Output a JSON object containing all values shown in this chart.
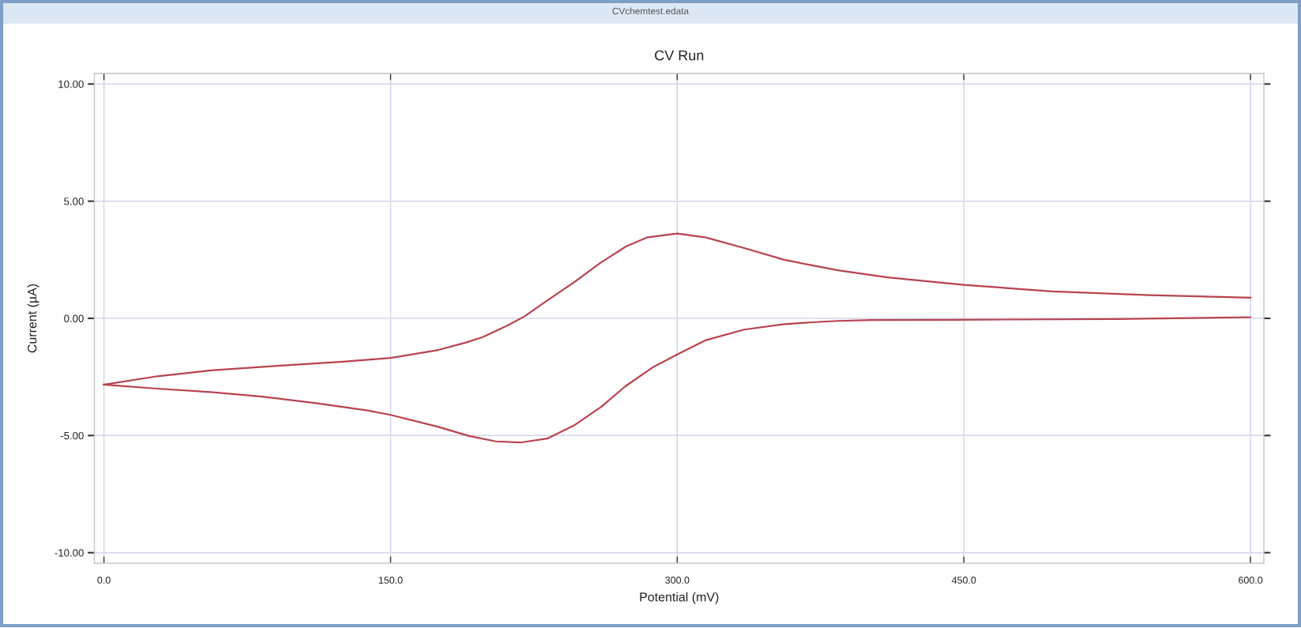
{
  "chart_data": {
    "type": "line",
    "title": "CV Run",
    "xlabel": "Potential (mV)",
    "ylabel": "Current (µA)",
    "annotations": [
      "CVchemtest.edata"
    ],
    "series": [
      {
        "color": "#b8434f",
        "x": [
          0,
          28,
          56,
          83,
          111,
          138,
          150,
          175,
          191,
          205,
          218,
          232,
          246,
          260,
          273,
          287,
          300,
          315,
          335,
          356,
          372,
          384,
          402,
          445,
          530,
          600
        ],
        "values": [
          -2.83,
          -3.0,
          -3.15,
          -3.34,
          -3.62,
          -3.93,
          -4.12,
          -4.63,
          -5.02,
          -5.25,
          -5.3,
          -5.13,
          -4.57,
          -3.79,
          -2.89,
          -2.1,
          -1.54,
          -0.93,
          -0.48,
          -0.25,
          -0.16,
          -0.11,
          -0.07,
          -0.06,
          -0.03,
          0.05
        ]
      },
      {
        "color": "#b8434f",
        "x": [
          600,
          547,
          496,
          450,
          410,
          384,
          370,
          356,
          335,
          315,
          300,
          284,
          273,
          260,
          246,
          232,
          220,
          211,
          198,
          189,
          175,
          150,
          125,
          97,
          56,
          28,
          0
        ],
        "values": [
          0.88,
          0.99,
          1.15,
          1.43,
          1.75,
          2.05,
          2.27,
          2.5,
          3.0,
          3.45,
          3.62,
          3.45,
          3.06,
          2.38,
          1.54,
          0.76,
          0.08,
          -0.31,
          -0.81,
          -1.04,
          -1.35,
          -1.69,
          -1.85,
          -1.99,
          -2.22,
          -2.47,
          -2.83
        ]
      }
    ],
    "xlim": [
      -5,
      607
    ],
    "ylim": [
      -10.45,
      10.45
    ],
    "xticks": [
      {
        "value": 0,
        "label": "0.0"
      },
      {
        "value": 150,
        "label": "150.0"
      },
      {
        "value": 300,
        "label": "300.0"
      },
      {
        "value": 450,
        "label": "450.0"
      },
      {
        "value": 600,
        "label": "600.0"
      }
    ],
    "yticks": [
      {
        "value": -10,
        "label": "-10.00"
      },
      {
        "value": -5,
        "label": "-5.00"
      },
      {
        "value": 0,
        "label": "0.00"
      },
      {
        "value": 5,
        "label": "5.00"
      },
      {
        "value": 10,
        "label": "10.00"
      }
    ],
    "grid": true,
    "line_style": "solid"
  }
}
